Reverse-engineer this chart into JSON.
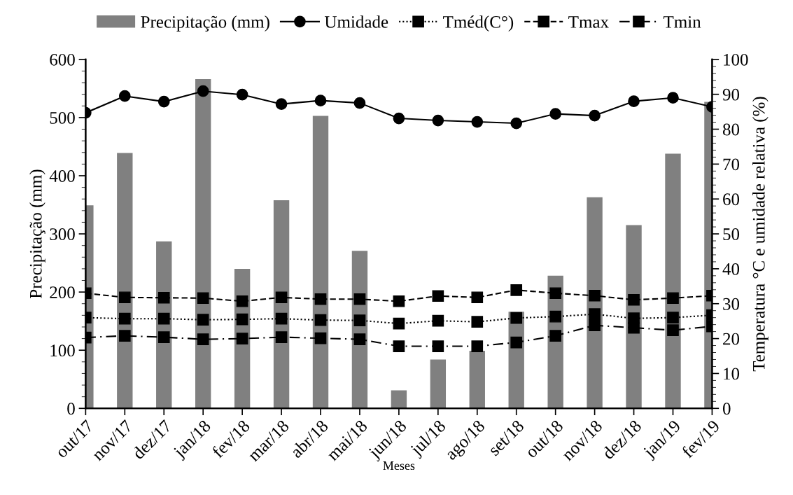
{
  "chart_data": {
    "type": "bar",
    "xlabel": "Meses",
    "ylabel": "Precipitação (mm)",
    "y2label": "Temperatura °C e umidade relativa (%)",
    "categories": [
      "out/17",
      "nov/17",
      "dez/17",
      "jan/18",
      "fev/18",
      "mar/18",
      "abr/18",
      "mai/18",
      "jun/18",
      "jul/18",
      "ago/18",
      "set/18",
      "out/18",
      "nov/18",
      "dez/18",
      "jan/19",
      "fev/19"
    ],
    "series": [
      {
        "name": "Precipitação (mm)",
        "color": "#808080",
        "values": [
          349,
          439,
          287,
          566,
          240,
          358,
          503,
          271,
          31,
          84,
          99,
          166,
          228,
          363,
          315,
          438,
          527
        ]
      },
      {
        "name": "Umidade",
        "type": "line",
        "axis": "y2",
        "color": "#000000",
        "marker": "circle",
        "line_style": "solid",
        "values": [
          84.7,
          89.5,
          87.9,
          90.9,
          89.9,
          87.2,
          88.2,
          87.5,
          83.1,
          82.5,
          82.1,
          81.7,
          84.4,
          83.9,
          88.0,
          89.0,
          86.4
        ]
      },
      {
        "name": "Tméd(C°)",
        "type": "line",
        "axis": "y2",
        "color": "#000000",
        "marker": "square",
        "line_style": "dotted",
        "values": [
          26.0,
          25.7,
          25.7,
          25.4,
          25.5,
          25.7,
          25.3,
          25.2,
          24.3,
          25.1,
          24.8,
          25.9,
          26.3,
          27.0,
          25.8,
          26.0,
          26.7
        ]
      },
      {
        "name": "Tmax",
        "type": "line",
        "axis": "y2",
        "color": "#000000",
        "marker": "square",
        "line_style": "dashed",
        "values": [
          33.0,
          31.8,
          31.7,
          31.6,
          30.7,
          31.8,
          31.3,
          31.3,
          30.7,
          32.2,
          31.8,
          33.9,
          33.0,
          32.3,
          31.1,
          31.6,
          32.3
        ]
      },
      {
        "name": "Tmin",
        "type": "line",
        "axis": "y2",
        "color": "#000000",
        "marker": "square",
        "line_style": "dashdot",
        "values": [
          20.3,
          20.8,
          20.4,
          19.8,
          20.0,
          20.4,
          20.1,
          19.8,
          17.8,
          17.8,
          17.8,
          18.9,
          20.8,
          23.8,
          23.1,
          22.4,
          23.5
        ]
      }
    ],
    "ylim": [
      0,
      600
    ],
    "yticks": [
      0,
      100,
      200,
      300,
      400,
      500,
      600
    ],
    "y2lim": [
      0,
      100
    ],
    "y2ticks": [
      0,
      10,
      20,
      30,
      40,
      50,
      60,
      70,
      80,
      90,
      100
    ],
    "grid": false,
    "legend": "top"
  }
}
